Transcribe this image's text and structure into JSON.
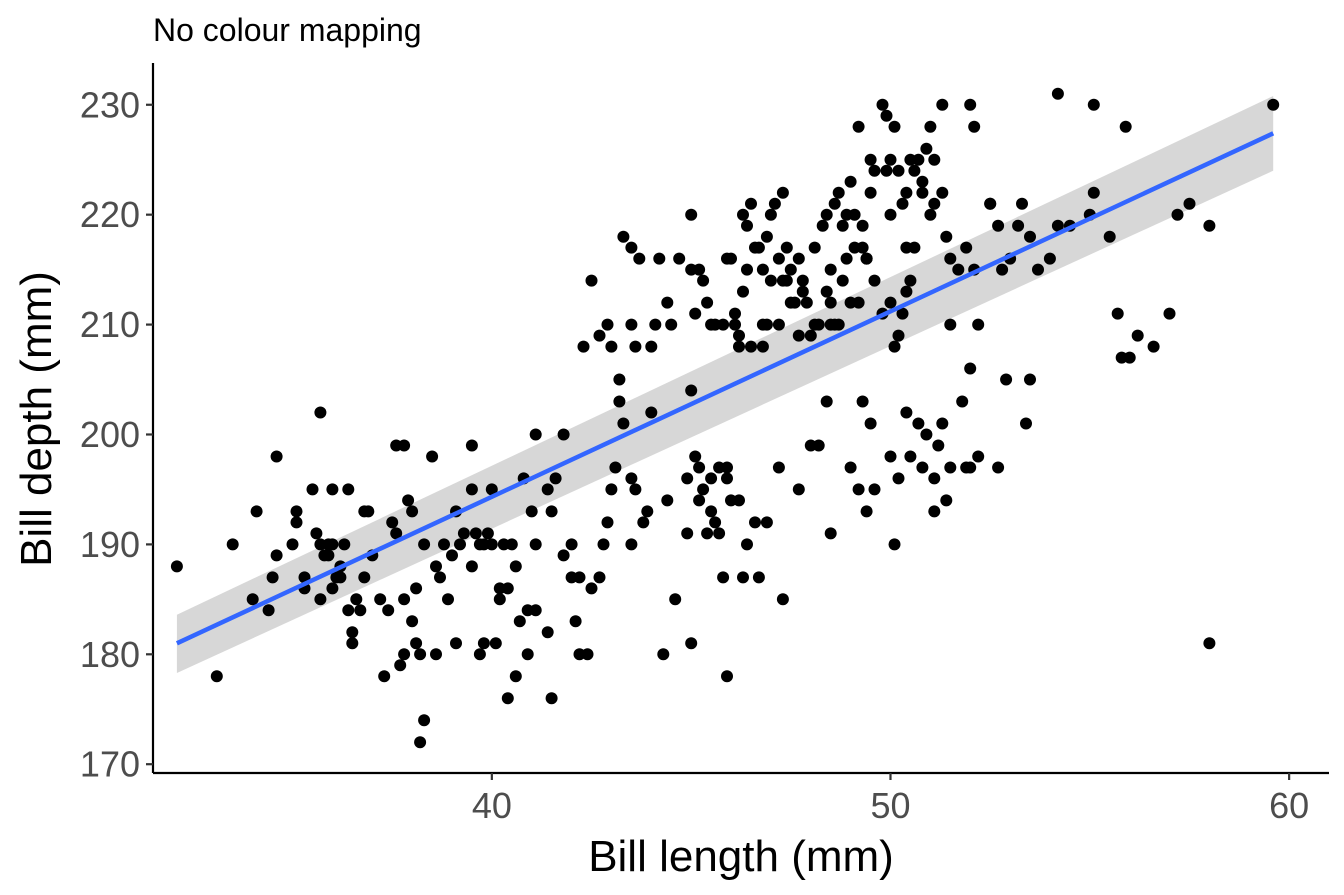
{
  "chart_data": {
    "type": "scatter",
    "title": "No colour mapping",
    "xlabel": "Bill length (mm)",
    "ylabel": "Bill depth (mm)",
    "xlim": [
      31.5,
      61.0
    ],
    "ylim": [
      169.2,
      233.8
    ],
    "xticks": [
      40,
      50,
      60
    ],
    "yticks": [
      170,
      180,
      190,
      200,
      210,
      220,
      230
    ],
    "grid": false,
    "point_color": "#000000",
    "trend": {
      "type": "linear",
      "x": [
        32.1,
        59.6
      ],
      "y": [
        181.0,
        227.4
      ],
      "ci_lower": [
        178.3,
        224.0
      ],
      "ci_upper": [
        183.6,
        230.8
      ],
      "color": "#3366FF",
      "ci_color": "#D3D3D3"
    },
    "points": [
      [
        32.1,
        188
      ],
      [
        33.1,
        178
      ],
      [
        33.5,
        190
      ],
      [
        34.0,
        185
      ],
      [
        34.1,
        193
      ],
      [
        34.4,
        184
      ],
      [
        34.5,
        187
      ],
      [
        34.6,
        198
      ],
      [
        34.6,
        189
      ],
      [
        35.0,
        190
      ],
      [
        35.1,
        193
      ],
      [
        35.1,
        192
      ],
      [
        35.3,
        187
      ],
      [
        35.3,
        186
      ],
      [
        35.5,
        195
      ],
      [
        35.6,
        191
      ],
      [
        35.7,
        202
      ],
      [
        35.7,
        190
      ],
      [
        35.7,
        185
      ],
      [
        35.8,
        189
      ],
      [
        35.9,
        190
      ],
      [
        35.9,
        189
      ],
      [
        36.0,
        186
      ],
      [
        36.0,
        190
      ],
      [
        36.0,
        195
      ],
      [
        36.1,
        187
      ],
      [
        36.2,
        188
      ],
      [
        36.2,
        187
      ],
      [
        36.3,
        190
      ],
      [
        36.4,
        184
      ],
      [
        36.4,
        195
      ],
      [
        36.5,
        182
      ],
      [
        36.5,
        181
      ],
      [
        36.6,
        185
      ],
      [
        36.7,
        184
      ],
      [
        36.8,
        187
      ],
      [
        36.8,
        193
      ],
      [
        36.9,
        193
      ],
      [
        37.0,
        189
      ],
      [
        37.2,
        185
      ],
      [
        37.3,
        178
      ],
      [
        37.4,
        184
      ],
      [
        37.5,
        192
      ],
      [
        37.6,
        191
      ],
      [
        37.6,
        199
      ],
      [
        37.7,
        179
      ],
      [
        37.8,
        180
      ],
      [
        37.8,
        185
      ],
      [
        37.8,
        199
      ],
      [
        37.9,
        194
      ],
      [
        38.0,
        193
      ],
      [
        38.0,
        183
      ],
      [
        38.1,
        181
      ],
      [
        38.1,
        186
      ],
      [
        38.2,
        180
      ],
      [
        38.2,
        172
      ],
      [
        38.3,
        174
      ],
      [
        38.3,
        190
      ],
      [
        38.5,
        198
      ],
      [
        38.6,
        180
      ],
      [
        38.6,
        188
      ],
      [
        38.7,
        187
      ],
      [
        38.8,
        190
      ],
      [
        38.9,
        185
      ],
      [
        39.0,
        189
      ],
      [
        39.1,
        193
      ],
      [
        39.1,
        181
      ],
      [
        39.2,
        190
      ],
      [
        39.3,
        191
      ],
      [
        39.5,
        188
      ],
      [
        39.5,
        195
      ],
      [
        39.5,
        199
      ],
      [
        39.6,
        191
      ],
      [
        39.7,
        180
      ],
      [
        39.7,
        190
      ],
      [
        39.8,
        181
      ],
      [
        39.8,
        190
      ],
      [
        39.9,
        191
      ],
      [
        40.0,
        190
      ],
      [
        40.0,
        195
      ],
      [
        40.1,
        181
      ],
      [
        40.2,
        185
      ],
      [
        40.2,
        186
      ],
      [
        40.3,
        190
      ],
      [
        40.4,
        186
      ],
      [
        40.5,
        190
      ],
      [
        40.6,
        188
      ],
      [
        40.6,
        178
      ],
      [
        40.7,
        183
      ],
      [
        40.8,
        196
      ],
      [
        40.9,
        184
      ],
      [
        41.0,
        193
      ],
      [
        41.1,
        190
      ],
      [
        41.1,
        184
      ],
      [
        41.1,
        200
      ],
      [
        41.4,
        195
      ],
      [
        41.5,
        176
      ],
      [
        41.5,
        193
      ],
      [
        41.6,
        196
      ],
      [
        41.8,
        200
      ],
      [
        41.8,
        189
      ],
      [
        42.0,
        190
      ],
      [
        42.0,
        187
      ],
      [
        42.1,
        183
      ],
      [
        42.2,
        180
      ],
      [
        42.2,
        187
      ],
      [
        42.3,
        208
      ],
      [
        42.5,
        214
      ],
      [
        42.5,
        186
      ],
      [
        42.7,
        187
      ],
      [
        42.8,
        190
      ],
      [
        42.9,
        192
      ],
      [
        43.0,
        195
      ],
      [
        43.1,
        197
      ],
      [
        43.2,
        203
      ],
      [
        43.2,
        205
      ],
      [
        43.3,
        201
      ],
      [
        43.5,
        190
      ],
      [
        43.5,
        196
      ],
      [
        43.6,
        195
      ],
      [
        43.8,
        192
      ],
      [
        43.9,
        193
      ],
      [
        44.0,
        202
      ],
      [
        44.1,
        210
      ],
      [
        44.3,
        180
      ],
      [
        44.4,
        194
      ],
      [
        44.5,
        210
      ],
      [
        44.6,
        185
      ],
      [
        44.9,
        196
      ],
      [
        45.0,
        181
      ],
      [
        45.1,
        198
      ],
      [
        45.2,
        197
      ],
      [
        45.3,
        195
      ],
      [
        45.4,
        191
      ],
      [
        45.5,
        196
      ],
      [
        45.6,
        192
      ],
      [
        45.7,
        197
      ],
      [
        45.8,
        187
      ],
      [
        45.9,
        196
      ],
      [
        45.9,
        197
      ],
      [
        46.0,
        216
      ],
      [
        46.1,
        210
      ],
      [
        46.2,
        209
      ],
      [
        46.3,
        213
      ],
      [
        46.4,
        215
      ],
      [
        46.5,
        208
      ],
      [
        46.7,
        187
      ],
      [
        46.8,
        208
      ],
      [
        46.9,
        218
      ],
      [
        47.0,
        220
      ],
      [
        47.2,
        210
      ],
      [
        47.3,
        214
      ],
      [
        47.4,
        217
      ],
      [
        47.5,
        212
      ],
      [
        47.7,
        216
      ],
      [
        47.8,
        213
      ],
      [
        48.0,
        209
      ],
      [
        48.1,
        210
      ],
      [
        48.2,
        199
      ],
      [
        48.4,
        213
      ],
      [
        48.5,
        215
      ],
      [
        48.7,
        210
      ],
      [
        48.8,
        214
      ],
      [
        48.9,
        220
      ],
      [
        49.0,
        223
      ],
      [
        49.1,
        220
      ],
      [
        49.2,
        212
      ],
      [
        49.3,
        219
      ],
      [
        49.5,
        222
      ],
      [
        49.6,
        214
      ],
      [
        49.8,
        211
      ],
      [
        50.0,
        212
      ],
      [
        50.1,
        208
      ],
      [
        50.2,
        209
      ],
      [
        50.3,
        211
      ],
      [
        50.4,
        217
      ],
      [
        50.5,
        214
      ],
      [
        50.6,
        217
      ],
      [
        50.8,
        222
      ],
      [
        51.0,
        220
      ],
      [
        51.1,
        221
      ],
      [
        51.3,
        222
      ],
      [
        51.5,
        216
      ],
      [
        51.7,
        215
      ],
      [
        51.9,
        217
      ],
      [
        52.1,
        215
      ],
      [
        52.5,
        221
      ],
      [
        52.7,
        219
      ],
      [
        52.8,
        215
      ],
      [
        53.0,
        216
      ],
      [
        53.3,
        221
      ],
      [
        53.5,
        218
      ],
      [
        53.7,
        215
      ],
      [
        54.0,
        216
      ],
      [
        54.2,
        219
      ],
      [
        54.5,
        219
      ],
      [
        55.0,
        220
      ],
      [
        55.1,
        222
      ],
      [
        55.5,
        218
      ],
      [
        55.7,
        211
      ],
      [
        56.0,
        207
      ],
      [
        56.2,
        209
      ],
      [
        56.6,
        208
      ],
      [
        57.0,
        211
      ],
      [
        57.2,
        220
      ],
      [
        57.5,
        221
      ],
      [
        58.0,
        219
      ],
      [
        43.3,
        218
      ],
      [
        43.5,
        217
      ],
      [
        43.7,
        216
      ],
      [
        44.2,
        216
      ],
      [
        44.7,
        216
      ],
      [
        45.0,
        215
      ],
      [
        45.1,
        211
      ],
      [
        45.2,
        215
      ],
      [
        45.3,
        214
      ],
      [
        45.4,
        212
      ],
      [
        45.5,
        210
      ],
      [
        45.6,
        210
      ],
      [
        45.8,
        210
      ],
      [
        45.9,
        216
      ],
      [
        46.1,
        211
      ],
      [
        46.2,
        208
      ],
      [
        46.4,
        219
      ],
      [
        46.5,
        221
      ],
      [
        46.6,
        217
      ],
      [
        46.7,
        217
      ],
      [
        46.8,
        210
      ],
      [
        46.9,
        210
      ],
      [
        47.0,
        214
      ],
      [
        47.1,
        221
      ],
      [
        47.2,
        216
      ],
      [
        47.3,
        222
      ],
      [
        47.5,
        215
      ],
      [
        47.6,
        212
      ],
      [
        47.7,
        209
      ],
      [
        47.8,
        214
      ],
      [
        47.9,
        212
      ],
      [
        48.1,
        217
      ],
      [
        48.2,
        210
      ],
      [
        48.4,
        220
      ],
      [
        48.5,
        212
      ],
      [
        48.6,
        210
      ],
      [
        48.7,
        222
      ],
      [
        48.8,
        219
      ],
      [
        49.0,
        212
      ],
      [
        49.1,
        217
      ],
      [
        49.2,
        228
      ],
      [
        49.4,
        216
      ],
      [
        49.5,
        225
      ],
      [
        49.6,
        224
      ],
      [
        49.8,
        230
      ],
      [
        49.9,
        229
      ],
      [
        50.0,
        225
      ],
      [
        50.1,
        228
      ],
      [
        50.2,
        224
      ],
      [
        50.3,
        221
      ],
      [
        50.4,
        213
      ],
      [
        50.5,
        225
      ],
      [
        50.6,
        224
      ],
      [
        50.7,
        225
      ],
      [
        50.8,
        223
      ],
      [
        50.9,
        226
      ],
      [
        51.0,
        228
      ],
      [
        51.1,
        225
      ],
      [
        51.3,
        230
      ],
      [
        51.4,
        218
      ],
      [
        51.5,
        210
      ],
      [
        52.0,
        230
      ],
      [
        52.1,
        228
      ],
      [
        52.5,
        221
      ],
      [
        53.2,
        219
      ],
      [
        54.2,
        231
      ],
      [
        55.1,
        230
      ],
      [
        55.9,
        228
      ],
      [
        59.6,
        230
      ],
      [
        48.5,
        210
      ],
      [
        49.3,
        217
      ],
      [
        50.0,
        220
      ],
      [
        45.0,
        220
      ],
      [
        44.4,
        212
      ],
      [
        43.6,
        208
      ],
      [
        42.7,
        209
      ],
      [
        43.0,
        208
      ],
      [
        42.9,
        210
      ],
      [
        43.5,
        210
      ],
      [
        44.0,
        208
      ],
      [
        45.0,
        204
      ],
      [
        46.3,
        220
      ],
      [
        46.8,
        215
      ],
      [
        47.4,
        214
      ],
      [
        48.3,
        219
      ],
      [
        48.6,
        221
      ],
      [
        48.9,
        216
      ],
      [
        49.4,
        216
      ],
      [
        49.9,
        224
      ],
      [
        50.4,
        222
      ],
      [
        51.8,
        203
      ],
      [
        52.2,
        198
      ],
      [
        51.3,
        201
      ],
      [
        50.7,
        201
      ],
      [
        50.4,
        202
      ],
      [
        49.5,
        201
      ],
      [
        49.0,
        197
      ],
      [
        48.5,
        191
      ],
      [
        48.0,
        199
      ],
      [
        47.2,
        197
      ],
      [
        46.6,
        192
      ],
      [
        46.2,
        194
      ],
      [
        45.7,
        191
      ],
      [
        45.5,
        193
      ],
      [
        45.2,
        194
      ],
      [
        44.9,
        191
      ],
      [
        46.0,
        194
      ],
      [
        46.4,
        190
      ],
      [
        46.9,
        192
      ],
      [
        47.3,
        185
      ],
      [
        47.7,
        195
      ],
      [
        49.2,
        195
      ],
      [
        49.6,
        195
      ],
      [
        50.0,
        198
      ],
      [
        50.2,
        196
      ],
      [
        50.5,
        198
      ],
      [
        50.8,
        197
      ],
      [
        51.1,
        196
      ],
      [
        51.5,
        197
      ],
      [
        52.0,
        197
      ],
      [
        52.7,
        197
      ],
      [
        53.5,
        205
      ],
      [
        52.0,
        206
      ],
      [
        52.2,
        210
      ],
      [
        55.8,
        207
      ],
      [
        58.0,
        181
      ],
      [
        51.4,
        194
      ],
      [
        51.1,
        193
      ],
      [
        51.9,
        197
      ],
      [
        52.9,
        205
      ],
      [
        53.4,
        201
      ],
      [
        51.2,
        199
      ],
      [
        50.9,
        200
      ],
      [
        50.1,
        190
      ],
      [
        49.4,
        193
      ],
      [
        48.4,
        203
      ],
      [
        49.3,
        203
      ],
      [
        46.3,
        187
      ],
      [
        45.9,
        178
      ],
      [
        40.4,
        176
      ],
      [
        40.9,
        180
      ],
      [
        41.4,
        182
      ],
      [
        42.4,
        180
      ]
    ]
  }
}
